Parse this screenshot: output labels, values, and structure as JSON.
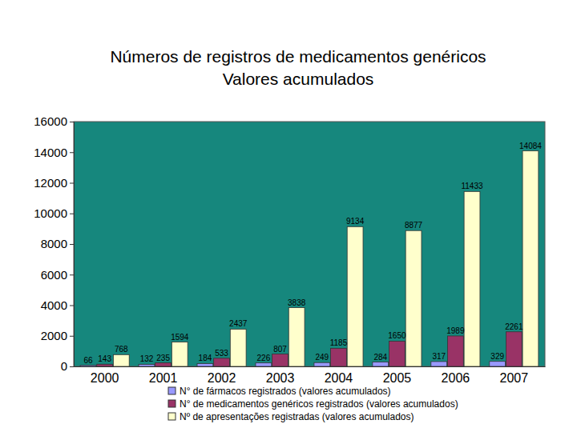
{
  "chart_data": {
    "type": "bar",
    "title": "Números de registros de medicamentos genéricos",
    "subtitle": "Valores acumulados",
    "categories": [
      "2000",
      "2001",
      "2002",
      "2003",
      "2004",
      "2005",
      "2006",
      "2007"
    ],
    "series": [
      {
        "name": "N° de fármacos registrados (valores acumulados)",
        "color": "#9999ff",
        "values": [
          66,
          132,
          184,
          226,
          249,
          284,
          317,
          329
        ]
      },
      {
        "name": "N° de medicamentos genéricos registrados (valores acumulados)",
        "color": "#993366",
        "values": [
          143,
          235,
          533,
          807,
          1185,
          1650,
          1989,
          2261
        ]
      },
      {
        "name": "Nº de apresentações registradas (valores acumulados)",
        "color": "#ffffcc",
        "values": [
          768,
          1594,
          2437,
          3838,
          9134,
          8877,
          11433,
          14084
        ]
      }
    ],
    "ylim": [
      0,
      16000
    ],
    "yticks": [
      0,
      2000,
      4000,
      6000,
      8000,
      10000,
      12000,
      14000,
      16000
    ],
    "grid": false,
    "legend": "bottom",
    "data_labels": true
  }
}
